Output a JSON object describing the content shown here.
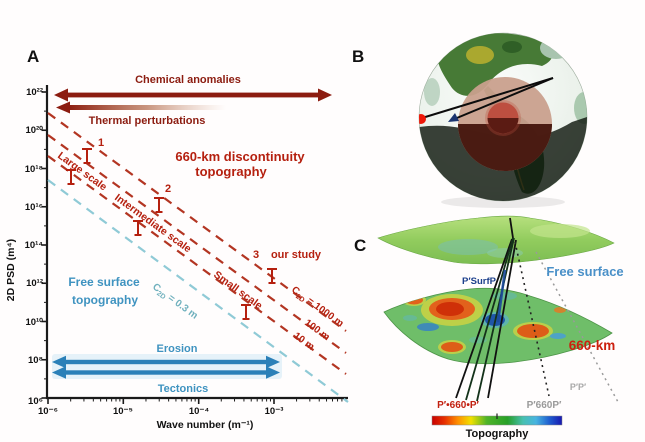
{
  "figure": {
    "background": "#fffdfd",
    "description_colors": {
      "dark_red_arrow": "#8c1c10",
      "red_dashed_line": "#b33522",
      "red_text": "#b5200f",
      "cyan_dashed_line": "#8fcad6",
      "blue_text": "#3f93c0",
      "blue_arrow": "#2b80b8",
      "panel_c_blue_label": "#4a90c8",
      "panel_c_red_label": "#cc1f0e",
      "gray_ray": "#9a9a9a",
      "navy_ray_label": "#1c3f8c"
    }
  },
  "chart_data": {
    "type": "line",
    "title": "",
    "xlabel": "Wave number (m⁻¹)",
    "ylabel": "2D PSD (m⁴)",
    "x_scale": "log",
    "y_scale": "log",
    "x_tick_labels": [
      "10⁻⁶",
      "10⁻⁵",
      "10⁻⁴",
      "10⁻³"
    ],
    "y_tick_labels": [
      "10²²",
      "10²⁰",
      "10¹⁸",
      "10¹⁶",
      "10¹⁴",
      "10¹²",
      "10¹⁰",
      "10⁸",
      "10⁶"
    ],
    "x_range_exp": [
      -6,
      -2.1
    ],
    "y_range_exp": [
      6,
      22.3
    ],
    "grid": false,
    "series": [
      {
        "name": "660-km topography, C2D = 1000 m",
        "style": "dashed",
        "color": "#b33522",
        "points_exp": [
          [
            -6,
            20.9
          ],
          [
            -2.1,
            10.0
          ]
        ]
      },
      {
        "name": "660-km topography, C2D = 100 m",
        "style": "dashed",
        "color": "#b33522",
        "points_exp": [
          [
            -6,
            19.8
          ],
          [
            -2.1,
            8.9
          ]
        ]
      },
      {
        "name": "660-km topography, C2D = 10 m",
        "style": "dashed",
        "color": "#b33522",
        "points_exp": [
          [
            -6,
            18.7
          ],
          [
            -2.1,
            7.8
          ]
        ]
      },
      {
        "name": "Free surface topography, C2D = 0.3 m",
        "style": "dashed",
        "color": "#8fcad6",
        "points_exp": [
          [
            -6,
            17.6
          ],
          [
            -2.1,
            6.6
          ]
        ]
      }
    ],
    "data_points": [
      {
        "label": "1",
        "scale": "Large scale",
        "upper_exp": [
          -5.49,
          19.1
        ],
        "lower_exp": [
          -5.69,
          17.7
        ]
      },
      {
        "label": "2",
        "scale": "Intermediate scale",
        "upper_exp": [
          -4.57,
          16.4
        ],
        "lower_exp": [
          -4.83,
          15.1
        ]
      },
      {
        "label": "3",
        "scale": "Small scale (our study)",
        "upper_exp": [
          -3.09,
          12.7
        ],
        "lower_exp": [
          -3.42,
          10.8
        ]
      }
    ],
    "annotations": [
      {
        "text": "Chemical anomalies",
        "type": "double-arrow",
        "x_exp": [
          -5.9,
          -2.3
        ],
        "y_exp": 21.9
      },
      {
        "text": "Thermal perturbations",
        "type": "fading-left-arrow",
        "x_exp": [
          -5.9,
          -3.7
        ],
        "y_exp": 21.2
      },
      {
        "text": "660-km discontinuity topography",
        "type": "region-label"
      },
      {
        "text": "Free surface topography",
        "type": "region-label"
      },
      {
        "text": "Erosion",
        "type": "double-arrow",
        "x_exp": [
          -5.95,
          -3.0
        ],
        "y_exp": 8.2
      },
      {
        "text": "Tectonics",
        "type": "double-arrow",
        "x_exp": [
          -5.95,
          -3.0
        ],
        "y_exp": 7.7
      }
    ]
  },
  "panel_a": {
    "label": "A",
    "chemical_anomalies": "Chemical anomalies",
    "thermal_perturbations": "Thermal perturbations",
    "region_title_1": "660-km discontinuity",
    "region_title_2": "topography",
    "free_surface_1": "Free surface",
    "free_surface_2": "topography",
    "large_scale": "Large scale",
    "intermediate_scale": "Intermediate scale",
    "small_scale": "Small scale",
    "p1": "1",
    "p2": "2",
    "p3": "3",
    "our_study": "our study",
    "c1000": {
      "base": "C",
      "sub": "2D",
      "rest": " = 1000 m"
    },
    "c100": "100 m",
    "c10": "10 m",
    "c03": {
      "base": "C",
      "sub": "2D",
      "rest": " = 0.3 m"
    },
    "erosion": "Erosion",
    "tectonics": "Tectonics"
  },
  "panel_b": {
    "label": "B"
  },
  "panel_c": {
    "label": "C",
    "free_surface": "Free surface",
    "surface_660": "660-km",
    "ray_psurfp": "P′SurfP",
    "ray_p660_solid": "P′•660•P′",
    "ray_p660_dotted": "P′660P′",
    "ray_pp": "P′P′",
    "colorbar_label": "Topography"
  }
}
